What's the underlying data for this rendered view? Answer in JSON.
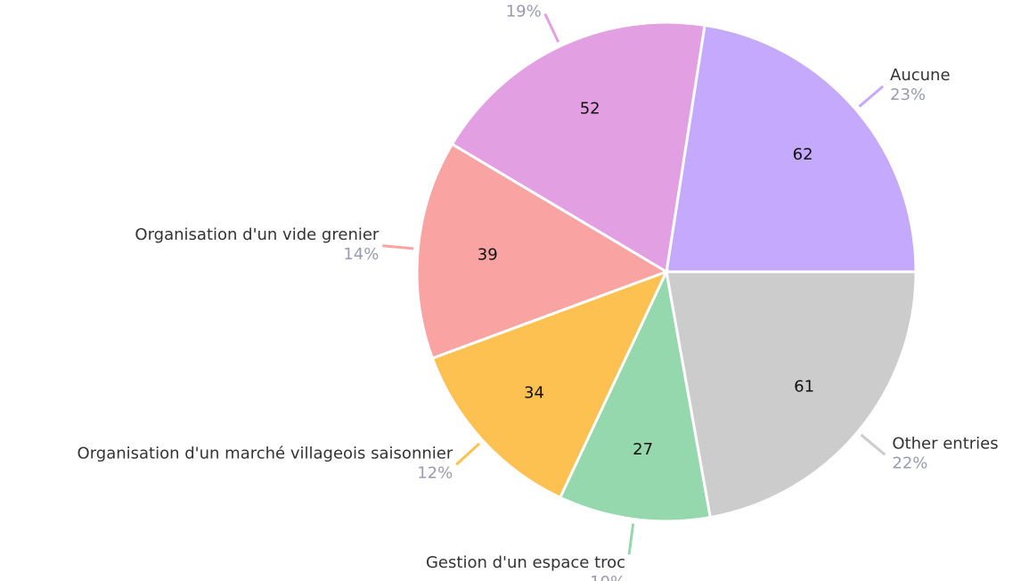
{
  "chart_data": {
    "type": "pie",
    "categories": [
      "Aucune",
      null,
      "Organisation d'un vide grenier",
      "Organisation d'un marché villageois saisonnier",
      "Gestion d'un espace troc",
      "Other entries"
    ],
    "values": [
      62,
      52,
      39,
      34,
      27,
      61
    ],
    "percent_labels": [
      "23%",
      "19%",
      "14%",
      "12%",
      "10%",
      "22%"
    ],
    "colors": [
      "#c4a9fc",
      "#e2a0e3",
      "#f9a3a3",
      "#fdc152",
      "#95d8ad",
      "#cccccc"
    ]
  }
}
